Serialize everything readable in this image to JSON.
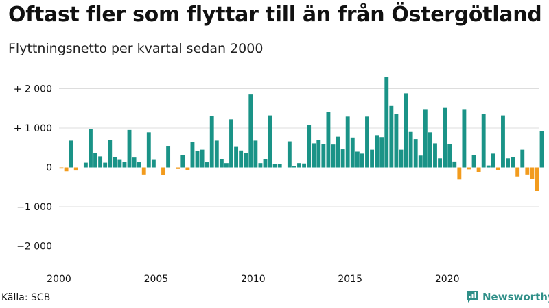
{
  "title": "Oftast fler som flyttar till än från Östergötland",
  "subtitle": "Flyttningsnetto per kvartal sedan 2000",
  "source": "Källa: SCB",
  "brand": "Newsworthy",
  "colors": {
    "positive": "#1a9387",
    "negative": "#f29b1d",
    "grid": "#dddddd",
    "brand": "#2f8f88"
  },
  "chart_data": {
    "type": "bar",
    "title": "Oftast fler som flyttar till än från Östergötland",
    "subtitle": "Flyttningsnetto per kvartal sedan 2000",
    "ylim": [
      -2400,
      2400
    ],
    "yticks": [
      2000,
      1000,
      0,
      -1000,
      -2000
    ],
    "ytick_labels": [
      "+ 2 000",
      "+ 1 000",
      "0",
      "−1 000",
      "−2 000"
    ],
    "xtick_labels": [
      "2000",
      "2005",
      "2010",
      "2015",
      "2020"
    ],
    "x_start_year": 2000,
    "xlim_quarters": [
      0,
      99
    ],
    "grid": true,
    "series": [
      {
        "values": [
          -30,
          -100,
          680,
          -80,
          0,
          120,
          980,
          370,
          280,
          120,
          700,
          260,
          190,
          140,
          950,
          250,
          130,
          -180,
          890,
          190,
          0,
          -200,
          530,
          0,
          -40,
          320,
          -70,
          640,
          420,
          450,
          130,
          1300,
          680,
          200,
          110,
          1220,
          520,
          430,
          370,
          1850,
          680,
          110,
          210,
          1320,
          80,
          80,
          0,
          660,
          40,
          110,
          100,
          1070,
          610,
          690,
          590,
          1400,
          580,
          780,
          460,
          1290,
          760,
          400,
          350,
          1290,
          450,
          820,
          770,
          2290,
          1560,
          1350,
          450,
          1880,
          900,
          720,
          300,
          1480,
          890,
          610,
          230,
          1510,
          600,
          150,
          -310,
          1480,
          -50,
          310,
          -120,
          1350,
          50,
          350,
          -70,
          1320,
          230,
          260,
          -230,
          450,
          -180,
          -290,
          -600,
          930
        ]
      }
    ]
  }
}
